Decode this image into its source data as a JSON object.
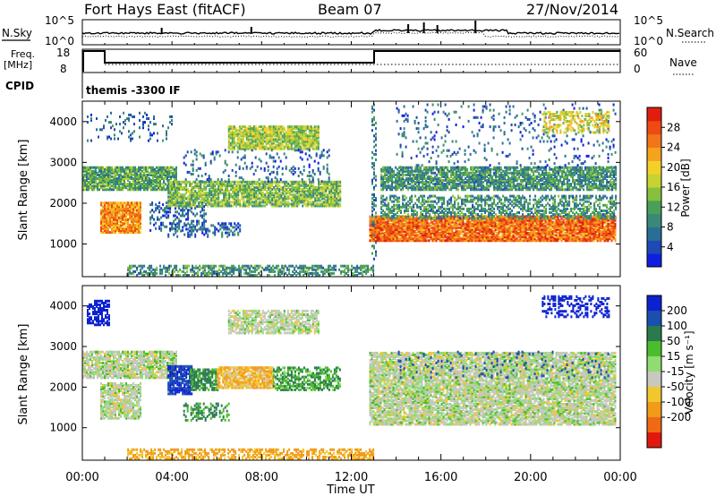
{
  "header": {
    "station": "Fort Hays East (fitACF)",
    "beam": "Beam 07",
    "date": "27/Nov/2014"
  },
  "meta_panel": {
    "nsky_label": "N.Sky",
    "nsearch_label": "N.Search",
    "freq_label_1": "Freq.",
    "freq_label_2": "[MHz]",
    "nave_label": "Nave",
    "cpid_label": "CPID",
    "cpid_value": "themis -3300 IF",
    "noise_ticks_left": [
      "10^5",
      "10^0"
    ],
    "noise_ticks_right": [
      "10^5",
      "10^0"
    ],
    "freq_ticks": [
      "18",
      "8"
    ],
    "nave_ticks": [
      "60",
      "0"
    ]
  },
  "chart_data": [
    {
      "type": "heatmap",
      "name": "Power",
      "ylabel": "Slant Range [km]",
      "xlabel": "",
      "ylim": [
        200,
        4500
      ],
      "yticks": [
        1000,
        2000,
        3000,
        4000
      ],
      "colorbar_label": "Power [dB]",
      "colorbar_ticks": [
        4,
        8,
        12,
        16,
        20,
        24,
        28
      ],
      "colorbar_range": [
        0,
        32
      ],
      "colors": [
        "#0f1fe0",
        "#1f49b4",
        "#2a6e98",
        "#3a8878",
        "#4aa058",
        "#86c03c",
        "#c8d232",
        "#f4cf2a",
        "#f5a21c",
        "#f2751a",
        "#ee4a14",
        "#e01e0e"
      ],
      "features": [
        {
          "t0": 0.0,
          "t1": 4.2,
          "r0": 2300,
          "r1": 2850,
          "level": 12,
          "density": 0.85
        },
        {
          "t0": 0.8,
          "t1": 2.6,
          "r0": 1250,
          "r1": 2000,
          "level": 24,
          "density": 0.9
        },
        {
          "t0": 3.0,
          "t1": 5.5,
          "r0": 1300,
          "r1": 2000,
          "level": 6,
          "density": 0.35
        },
        {
          "t0": 3.8,
          "t1": 7.0,
          "r0": 1150,
          "r1": 1500,
          "level": 6,
          "density": 0.35
        },
        {
          "t0": 3.8,
          "t1": 11.5,
          "r0": 1900,
          "r1": 2500,
          "level": 14,
          "density": 0.8
        },
        {
          "t0": 6.5,
          "t1": 10.5,
          "r0": 3300,
          "r1": 3850,
          "level": 16,
          "density": 0.85
        },
        {
          "t0": 4.5,
          "t1": 11.0,
          "r0": 2500,
          "r1": 3300,
          "level": 6,
          "density": 0.15
        },
        {
          "t0": 0.2,
          "t1": 4.0,
          "r0": 3500,
          "r1": 4200,
          "level": 6,
          "density": 0.12
        },
        {
          "t0": 12.8,
          "t1": 23.8,
          "r0": 1050,
          "r1": 1650,
          "level": 26,
          "density": 0.92
        },
        {
          "t0": 13.3,
          "t1": 23.8,
          "r0": 1600,
          "r1": 2150,
          "level": 10,
          "density": 0.5
        },
        {
          "t0": 13.3,
          "t1": 23.8,
          "r0": 2300,
          "r1": 2850,
          "level": 10,
          "density": 0.78
        },
        {
          "t0": 14.0,
          "t1": 23.8,
          "r0": 2850,
          "r1": 4400,
          "level": 6,
          "density": 0.08
        },
        {
          "t0": 20.5,
          "t1": 23.5,
          "r0": 3700,
          "r1": 4200,
          "level": 18,
          "density": 0.45
        },
        {
          "t0": 2.0,
          "t1": 13.0,
          "r0": 200,
          "r1": 450,
          "level": 10,
          "density": 0.55
        },
        {
          "t0": 12.9,
          "t1": 13.1,
          "r0": 600,
          "r1": 4400,
          "level": 8,
          "density": 0.3
        }
      ]
    },
    {
      "type": "heatmap",
      "name": "Velocity",
      "ylabel": "Slant Range [km]",
      "xlabel": "Time UT",
      "ylim": [
        200,
        4500
      ],
      "yticks": [
        1000,
        2000,
        3000,
        4000
      ],
      "xticks": [
        "00:00",
        "04:00",
        "08:00",
        "12:00",
        "16:00",
        "20:00",
        "00:00"
      ],
      "colorbar_label": "Velocity [m s⁻¹]",
      "colorbar_ticks": [
        200,
        100,
        50,
        15,
        -15,
        -50,
        -100,
        -200
      ],
      "colors": [
        "#0c22d0",
        "#1a4fb0",
        "#2a7a4e",
        "#4bbd2c",
        "#8fdc70",
        "#c8c8c0",
        "#f2c72e",
        "#f29a1a",
        "#ef6a14",
        "#e0180e"
      ],
      "features": [
        {
          "t0": 0.0,
          "t1": 4.2,
          "r0": 2200,
          "r1": 2850,
          "vel": 0,
          "density": 0.8
        },
        {
          "t0": 0.8,
          "t1": 2.6,
          "r0": 1200,
          "r1": 2100,
          "vel": 0,
          "density": 0.75
        },
        {
          "t0": 3.8,
          "t1": 4.9,
          "r0": 1800,
          "r1": 2500,
          "vel": 150,
          "density": 0.8
        },
        {
          "t0": 4.8,
          "t1": 6.0,
          "r0": 1900,
          "r1": 2400,
          "vel": 40,
          "density": 0.8
        },
        {
          "t0": 6.0,
          "t1": 8.5,
          "r0": 1950,
          "r1": 2450,
          "vel": -30,
          "density": 0.85
        },
        {
          "t0": 8.5,
          "t1": 11.5,
          "r0": 1900,
          "r1": 2450,
          "vel": 30,
          "density": 0.6
        },
        {
          "t0": 6.5,
          "t1": 10.5,
          "r0": 3300,
          "r1": 3850,
          "vel": 0,
          "density": 0.7
        },
        {
          "t0": 0.2,
          "t1": 1.2,
          "r0": 3500,
          "r1": 4100,
          "vel": 180,
          "density": 0.6
        },
        {
          "t0": 12.8,
          "t1": 23.8,
          "r0": 1050,
          "r1": 2850,
          "vel": 0,
          "density": 0.82
        },
        {
          "t0": 14.0,
          "t1": 23.5,
          "r0": 2200,
          "r1": 2850,
          "vel": 120,
          "density": 0.06
        },
        {
          "t0": 20.5,
          "t1": 23.5,
          "r0": 3700,
          "r1": 4200,
          "vel": 180,
          "density": 0.4
        },
        {
          "t0": 2.0,
          "t1": 13.0,
          "r0": 200,
          "r1": 450,
          "vel": -40,
          "density": 0.55
        },
        {
          "t0": 4.5,
          "t1": 6.5,
          "r0": 1150,
          "r1": 1600,
          "vel": 40,
          "density": 0.4
        }
      ]
    }
  ]
}
